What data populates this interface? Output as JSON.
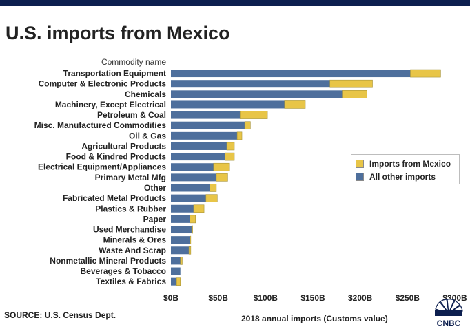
{
  "title": "U.S. imports from Mexico",
  "source": "SOURCE: U.S. Census Dept.",
  "logo_text": "CNBC",
  "colors": {
    "mexico": "#e8c547",
    "other": "#4e6f9c",
    "topbar": "#0d1f4f"
  },
  "chart_data": {
    "type": "bar",
    "orientation": "horizontal",
    "stacked": true,
    "title": "U.S. imports from Mexico",
    "category_header": "Commodity name",
    "xlabel": "2018 annual imports (Customs value)",
    "xlim": [
      0,
      300
    ],
    "x_ticks": [
      {
        "value": 0,
        "label": "$0B"
      },
      {
        "value": 50,
        "label": "$50B"
      },
      {
        "value": 100,
        "label": "$100B"
      },
      {
        "value": 150,
        "label": "$150B"
      },
      {
        "value": 200,
        "label": "$200B"
      },
      {
        "value": 250,
        "label": "$250B"
      },
      {
        "value": 300,
        "label": "$300B"
      }
    ],
    "grid": false,
    "legend_position": "right",
    "categories": [
      "Transportation Equipment",
      "Computer & Electronic Products",
      "Chemicals",
      "Machinery, Except Electrical",
      "Petroleum & Coal",
      "Misc. Manufactured Commodities",
      "Oil & Gas",
      "Agricultural Products",
      "Food & Kindred Products",
      "Electrical Equipment/Appliances",
      "Primary Metal Mfg",
      "Other",
      "Fabricated Metal Products",
      "Plastics & Rubber",
      "Paper",
      "Used Merchandise",
      "Minerals & Ores",
      "Waste And Scrap",
      "Nonmetallic Mineral Products",
      "Beverages & Tobacco",
      "Textiles & Fabrics"
    ],
    "series": [
      {
        "name": "All other imports",
        "color": "#4e6f9c",
        "values": [
          253,
          168,
          181,
          120,
          73,
          78,
          70,
          59,
          57,
          45,
          48,
          41,
          37,
          24,
          20,
          22,
          20,
          19,
          10,
          10,
          6
        ]
      },
      {
        "name": "Imports from Mexico",
        "color": "#e8c547",
        "values": [
          32,
          45,
          26,
          22,
          29,
          6,
          5,
          8,
          10,
          17,
          12,
          7,
          12,
          11,
          6,
          1,
          1,
          2,
          2,
          0,
          4
        ]
      }
    ]
  }
}
